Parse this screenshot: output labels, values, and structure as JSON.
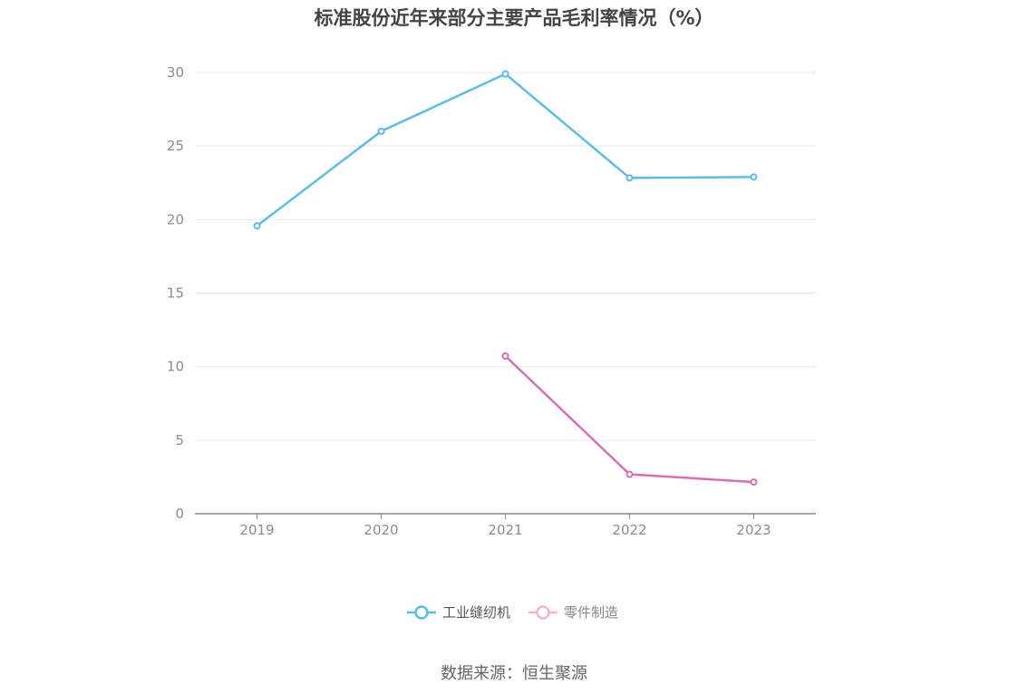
{
  "chart_data": {
    "type": "line",
    "title": "标准股份近年来部分主要产品毛利率情况（%）",
    "categories": [
      "2019",
      "2020",
      "2021",
      "2022",
      "2023"
    ],
    "series": [
      {
        "name": "工业缝纫机",
        "color": "#5bbcec",
        "values": [
          19.57,
          26.0,
          29.9,
          22.83,
          22.89
        ]
      },
      {
        "name": "零件制造",
        "color": "#d96eb5",
        "values": [
          null,
          null,
          10.72,
          2.68,
          2.15
        ]
      }
    ],
    "ylim": [
      0,
      30
    ],
    "yticks": [
      0,
      5,
      10,
      15,
      20,
      25,
      30
    ],
    "grid": true,
    "legend": "bottom-center",
    "xlabel": "",
    "ylabel": ""
  },
  "source": "数据来源：恒生聚源"
}
